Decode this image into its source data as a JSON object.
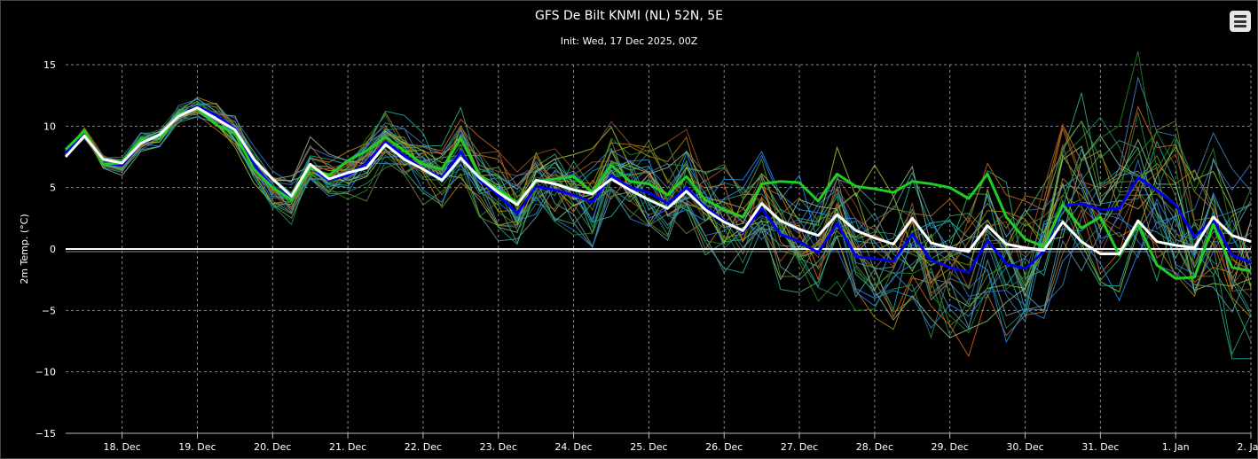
{
  "chart_data": {
    "type": "line",
    "title": "GFS De Bilt KNMI (NL) 52N, 5E",
    "subtitle": "Init: Wed, 17 Dec 2025, 00Z",
    "ylabel": "2m Temp. (°C)",
    "xlabel": "",
    "ylim": [
      -15,
      15
    ],
    "yticks": [
      -15,
      -10,
      -5,
      0,
      5,
      10,
      15
    ],
    "ytick_labels": [
      "−15",
      "−10",
      "−5",
      "0",
      "5",
      "10",
      "15"
    ],
    "xlim_days": [
      17.25,
      33.0
    ],
    "xticks": [
      {
        "day": 18,
        "label": "18. Dec"
      },
      {
        "day": 19,
        "label": "19. Dec"
      },
      {
        "day": 20,
        "label": "20. Dec"
      },
      {
        "day": 21,
        "label": "21. Dec"
      },
      {
        "day": 22,
        "label": "22. Dec"
      },
      {
        "day": 23,
        "label": "23. Dec"
      },
      {
        "day": 24,
        "label": "24. Dec"
      },
      {
        "day": 25,
        "label": "25. Dec"
      },
      {
        "day": 26,
        "label": "26. Dec"
      },
      {
        "day": 27,
        "label": "27. Dec"
      },
      {
        "day": 28,
        "label": "28. Dec"
      },
      {
        "day": 29,
        "label": "29. Dec"
      },
      {
        "day": 30,
        "label": "30. Dec"
      },
      {
        "day": 31,
        "label": "31. Dec"
      },
      {
        "day": 32,
        "label": "1. Jan"
      },
      {
        "day": 33,
        "label": "2. Jan"
      }
    ],
    "grid": true,
    "zero_line": true,
    "time_step_hours": 6,
    "series": [
      {
        "role": "control",
        "color": "#ffffff",
        "width": 3,
        "values": [
          7.5,
          9.2,
          7.3,
          7.0,
          8.6,
          9.3,
          10.8,
          11.5,
          10.6,
          9.7,
          7.3,
          5.7,
          4.3,
          6.9,
          5.7,
          6.2,
          6.6,
          8.5,
          7.3,
          6.5,
          5.6,
          7.4,
          5.8,
          4.6,
          3.6,
          5.6,
          5.3,
          4.8,
          4.5,
          5.7,
          4.8,
          4.0,
          3.3,
          4.7,
          3.2,
          2.2,
          1.5,
          3.7,
          2.3,
          1.6,
          1.1,
          2.8,
          1.5,
          0.9,
          0.4,
          2.5,
          0.5,
          0.1,
          -0.2,
          1.9,
          0.4,
          0.1,
          -0.1,
          2.2,
          0.6,
          -0.4,
          -0.4,
          2.3,
          0.6,
          0.3,
          0.1,
          2.6,
          1.1,
          0.6
        ]
      },
      {
        "role": "operational",
        "color": "#22cc22",
        "width": 3,
        "values": [
          8.1,
          9.6,
          6.9,
          7.0,
          8.9,
          9.0,
          11.0,
          11.4,
          10.1,
          9.4,
          6.5,
          5.0,
          4.0,
          6.6,
          6.0,
          7.2,
          8.0,
          9.1,
          8.0,
          6.9,
          6.5,
          9.0,
          6.0,
          4.8,
          3.8,
          5.5,
          5.7,
          5.9,
          4.6,
          6.8,
          5.5,
          5.3,
          4.4,
          5.9,
          4.0,
          3.2,
          2.6,
          5.3,
          5.5,
          5.4,
          3.9,
          6.1,
          5.1,
          4.9,
          4.6,
          5.5,
          5.3,
          5.0,
          4.1,
          6.1,
          2.6,
          0.8,
          0.2,
          3.6,
          1.7,
          2.6,
          -0.5,
          2.1,
          -1.3,
          -2.4,
          -2.3,
          2.0,
          -1.5,
          -1.8
        ]
      },
      {
        "role": "mean",
        "color": "#0000e6",
        "width": 3,
        "values": [
          7.8,
          9.4,
          7.0,
          6.8,
          8.6,
          9.1,
          10.9,
          11.6,
          10.9,
          9.8,
          6.9,
          5.0,
          4.2,
          6.7,
          5.6,
          6.0,
          7.0,
          8.7,
          7.6,
          6.5,
          5.8,
          7.9,
          5.6,
          4.4,
          2.9,
          5.1,
          4.8,
          4.4,
          3.8,
          6.0,
          5.0,
          4.6,
          3.7,
          5.0,
          3.4,
          2.3,
          1.4,
          3.3,
          1.2,
          0.6,
          -0.3,
          2.1,
          -0.6,
          -0.8,
          -1.0,
          1.2,
          -0.9,
          -1.5,
          -1.9,
          0.7,
          -1.2,
          -1.6,
          -0.2,
          3.5,
          3.7,
          3.2,
          3.3,
          5.8,
          4.8,
          3.6,
          1.0,
          2.4,
          -0.5,
          -1.1
        ]
      }
    ]
  }
}
